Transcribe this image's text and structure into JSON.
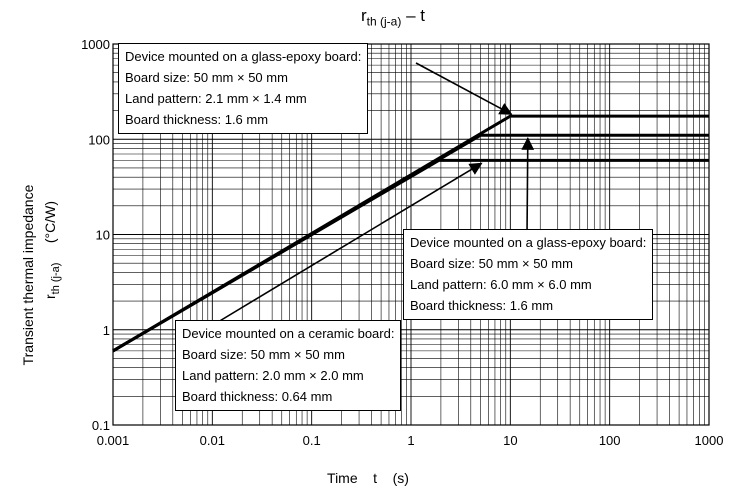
{
  "chart_data": {
    "type": "line",
    "title": "r",
    "title_sub": "th (j-a)",
    "title_suffix": " – t",
    "xlabel": "Time    t    (s)",
    "ylabel": "Transient thermal impedance",
    "ylabel_symbol": "r",
    "ylabel_symbol_sub": "th (j-a)",
    "ylabel_unit": "(°C/W)",
    "x_scale": "log",
    "y_scale": "log",
    "xlim": [
      0.001,
      1000
    ],
    "ylim": [
      0.1,
      1000
    ],
    "x_ticks": [
      "0.001",
      "0.01",
      "0.1",
      "1",
      "10",
      "100",
      "1000"
    ],
    "y_ticks": [
      "0.1",
      "1",
      "10",
      "100",
      "1000"
    ],
    "grid": true,
    "series": [
      {
        "x": [
          0.001,
          10,
          1000
        ],
        "y": [
          0.6,
          175,
          175
        ]
      },
      {
        "x": [
          0.001,
          5,
          1000
        ],
        "y": [
          0.6,
          110,
          110
        ]
      },
      {
        "x": [
          0.001,
          1.9,
          1000
        ],
        "y": [
          0.6,
          60,
          60
        ]
      }
    ],
    "annotations": [
      {
        "lines": [
          "Device mounted on a glass-epoxy board:",
          "Board size: 50 mm × 50 mm",
          "Land pattern: 2.1 mm × 1.4 mm",
          "Board thickness: 1.6 mm"
        ],
        "points_to": [
          10,
          175
        ]
      },
      {
        "lines": [
          "Device mounted on a glass-epoxy board:",
          "Board size: 50 mm × 50 mm",
          "Land pattern: 6.0 mm × 6.0 mm",
          "Board thickness: 1.6 mm"
        ],
        "points_to": [
          15,
          110
        ]
      },
      {
        "lines": [
          "Device mounted on a ceramic board:",
          "Board size: 50 mm × 50 mm",
          "Land pattern: 2.0 mm × 2.0 mm",
          "Board thickness: 0.64 mm"
        ],
        "points_to": [
          5,
          60
        ]
      }
    ]
  }
}
